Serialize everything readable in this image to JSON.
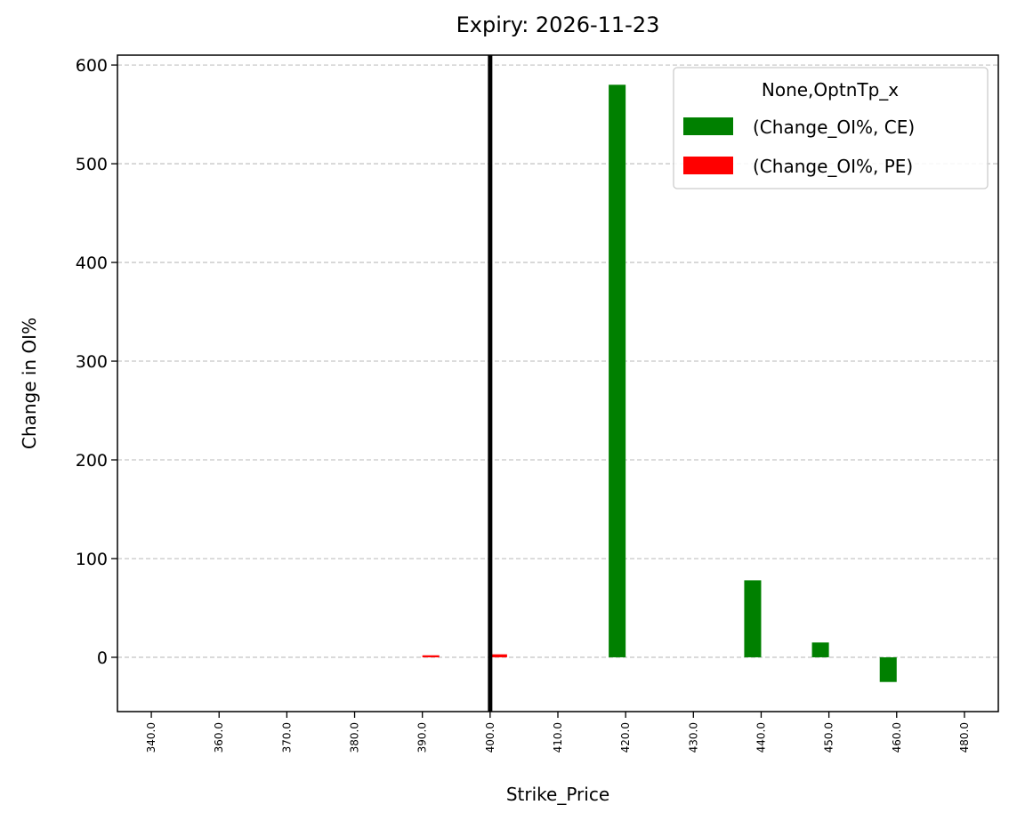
{
  "chart_data": {
    "type": "bar",
    "title": "Expiry: 2026-11-23",
    "x_label": "Strike_Price",
    "y_label": "Change in OI%",
    "categories": [
      "340.0",
      "360.0",
      "370.0",
      "380.0",
      "390.0",
      "400.0",
      "410.0",
      "420.0",
      "430.0",
      "440.0",
      "450.0",
      "460.0",
      "480.0"
    ],
    "series": [
      {
        "name": "(Change_OI%, CE)",
        "color": "#008000",
        "values": [
          null,
          null,
          null,
          null,
          null,
          null,
          null,
          580,
          null,
          78,
          15,
          -25,
          null
        ]
      },
      {
        "name": "(Change_OI%, PE)",
        "color": "#ff0000",
        "values": [
          null,
          null,
          null,
          null,
          2,
          3,
          null,
          null,
          null,
          null,
          null,
          null,
          null
        ]
      }
    ],
    "legend_title": "None,OptnTp_x",
    "legend_position": "upper right",
    "vline_category": "400.0",
    "vline_color": "#000000",
    "ylim": [
      -55,
      610
    ],
    "yticks": [
      0,
      100,
      200,
      300,
      400,
      500,
      600
    ],
    "grid": true
  }
}
